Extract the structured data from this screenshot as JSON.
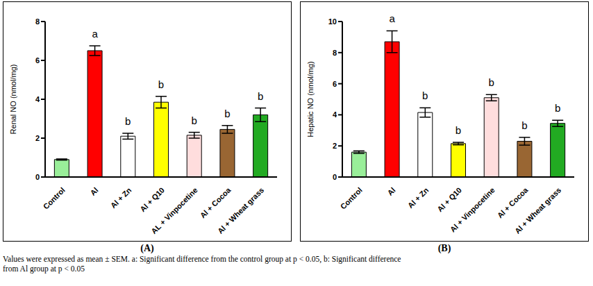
{
  "chart_data": [
    {
      "type": "bar",
      "title": "(A)",
      "y_label": "Renal NO (nmol/mg)",
      "categories": [
        "Control",
        "Al",
        "Al + Zn",
        "Al + Q10",
        "AL + Vinpocetine",
        "Al + Cocoa",
        "Al + Wheat grass"
      ],
      "values": [
        0.9,
        6.5,
        2.1,
        3.85,
        2.15,
        2.45,
        3.2
      ],
      "errors": [
        0.03,
        0.25,
        0.15,
        0.3,
        0.15,
        0.2,
        0.35
      ],
      "colors": [
        "#99ee99",
        "#ff0000",
        "#ffffff",
        "#ffff00",
        "#ffdddd",
        "#996633",
        "#22aa22"
      ],
      "annotations": [
        null,
        "a",
        "b",
        "b",
        "b",
        "b",
        "b"
      ],
      "ylim": [
        0,
        8
      ],
      "yticks": [
        0,
        2,
        4,
        6,
        8
      ]
    },
    {
      "type": "bar",
      "title": "(B)",
      "y_label": "Hepatic NO (nmol/mg)",
      "categories": [
        "Control",
        "Al",
        "Al + Zn",
        "Al + Q10",
        "Al + Vinpocetine",
        "Al + Cocoa",
        "Al + Wheat grass"
      ],
      "values": [
        1.6,
        8.7,
        4.15,
        2.15,
        5.1,
        2.3,
        3.45
      ],
      "errors": [
        0.08,
        0.7,
        0.3,
        0.08,
        0.2,
        0.25,
        0.2
      ],
      "colors": [
        "#99ee99",
        "#ff0000",
        "#ffffff",
        "#ffff00",
        "#ffdddd",
        "#996633",
        "#22aa22"
      ],
      "annotations": [
        null,
        "a",
        "b",
        "b",
        "b",
        "b",
        "b"
      ],
      "ylim": [
        0,
        10
      ],
      "yticks": [
        0,
        2,
        4,
        6,
        8,
        10
      ]
    }
  ],
  "caption": [
    "Values were expressed as mean ± SEM. a: Significant difference from the control group at p < 0.05, b: Significant difference",
    "from Al group at p < 0.05"
  ]
}
